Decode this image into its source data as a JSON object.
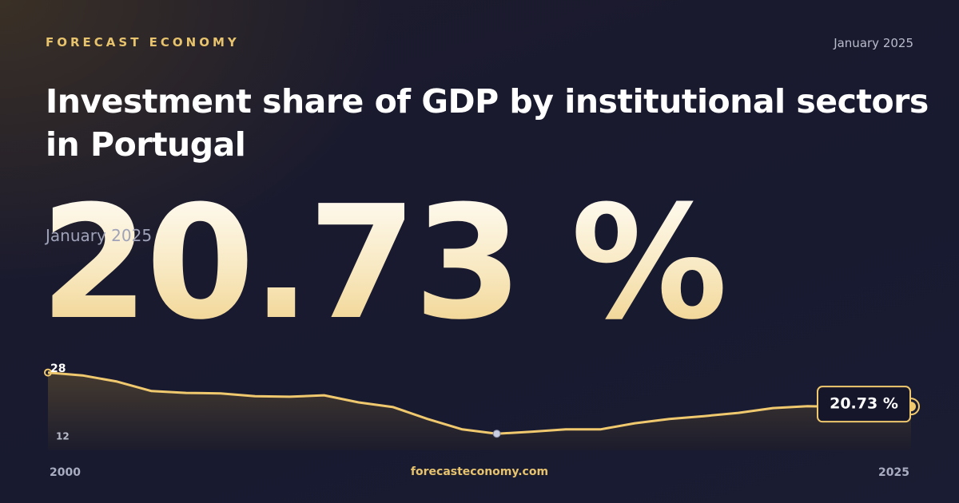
{
  "header": {
    "brand": "FORECAST ECONOMY",
    "date": "January 2025"
  },
  "title": "Investment share of GDP by institutional sectors in Portugal",
  "headline": {
    "value": "20.73 %",
    "date": "January 2025"
  },
  "chart_data": {
    "type": "line",
    "x": [
      2000,
      2001,
      2002,
      2003,
      2004,
      2005,
      2006,
      2007,
      2008,
      2009,
      2010,
      2011,
      2012,
      2013,
      2014,
      2015,
      2016,
      2017,
      2018,
      2019,
      2020,
      2021,
      2022,
      2023,
      2024,
      2025
    ],
    "series": [
      {
        "color": "#f0c96e",
        "values": [
          27.9,
          27.3,
          26.0,
          24.0,
          23.6,
          23.5,
          22.9,
          22.8,
          23.1,
          21.6,
          20.6,
          18.1,
          15.9,
          15.0,
          15.4,
          15.9,
          15.9,
          17.2,
          18.1,
          18.7,
          19.4,
          20.4,
          20.8,
          20.7,
          20.7,
          20.73
        ],
        "value_labels": [
          null,
          null,
          null,
          null,
          null,
          null,
          null,
          null,
          null,
          null,
          null,
          null,
          null,
          null,
          null,
          null,
          null,
          null,
          null,
          null,
          null,
          null,
          null,
          null,
          null,
          "20.73 %"
        ]
      }
    ],
    "xlim": [
      2000,
      2025
    ],
    "xticks": [
      2000,
      2025
    ],
    "ylim": [
      12,
      28
    ],
    "yticks": [
      12,
      28
    ]
  },
  "footer": "forecasteconomy.com"
}
